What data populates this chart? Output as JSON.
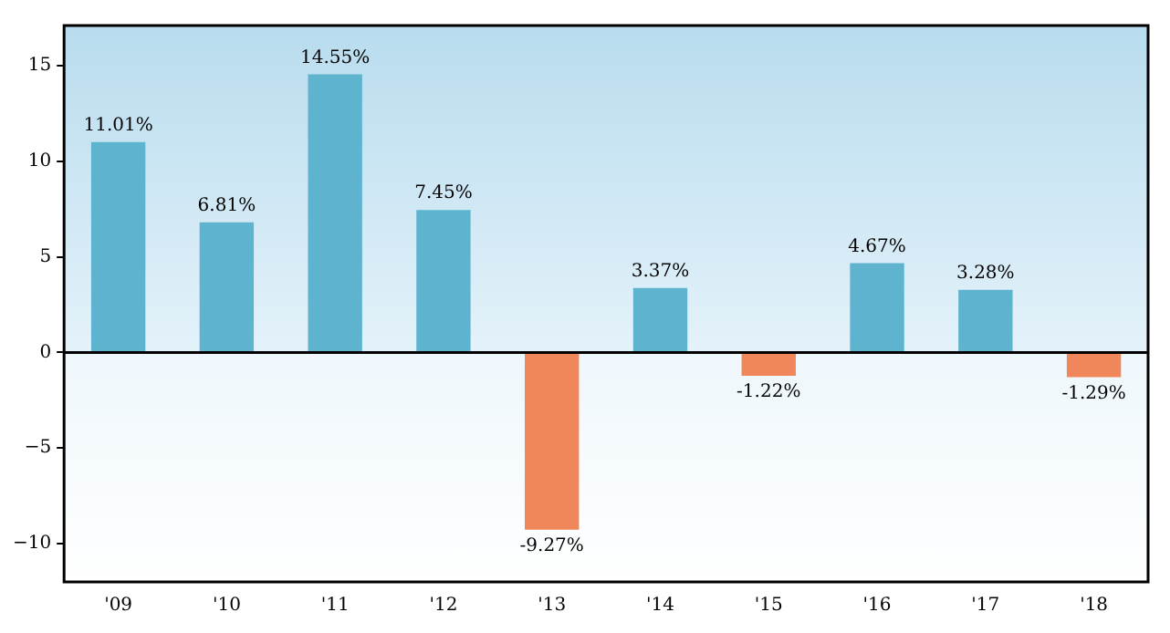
{
  "chart_data": {
    "type": "bar",
    "categories": [
      "'09",
      "'10",
      "'11",
      "'12",
      "'13",
      "'14",
      "'15",
      "'16",
      "'17",
      "'18"
    ],
    "values": [
      11.01,
      6.81,
      14.55,
      7.45,
      -9.27,
      3.37,
      -1.22,
      4.67,
      3.28,
      -1.29
    ],
    "colors": [
      "#5eb4cf",
      "#5eb4cf",
      "#5eb4cf",
      "#5eb4cf",
      "#f0875a",
      "#5eb4cf",
      "#f0875a",
      "#5eb4cf",
      "#5eb4cf",
      "#f0875a"
    ],
    "value_labels": [
      "11.01%",
      "6.81%",
      "14.55%",
      "7.45%",
      "-9.27%",
      "3.37%",
      "-1.22%",
      "4.67%",
      "3.28%",
      "-1.29%"
    ],
    "ylim": [
      -12,
      17.1
    ],
    "yticks": [
      {
        "value": -10,
        "label": "−10"
      },
      {
        "value": -5,
        "label": "−5"
      },
      0,
      5,
      10,
      15
    ],
    "ref_lines": [
      {
        "axis": "y",
        "value": 0,
        "color": "#000000"
      }
    ],
    "grid": false,
    "legend": false
  }
}
